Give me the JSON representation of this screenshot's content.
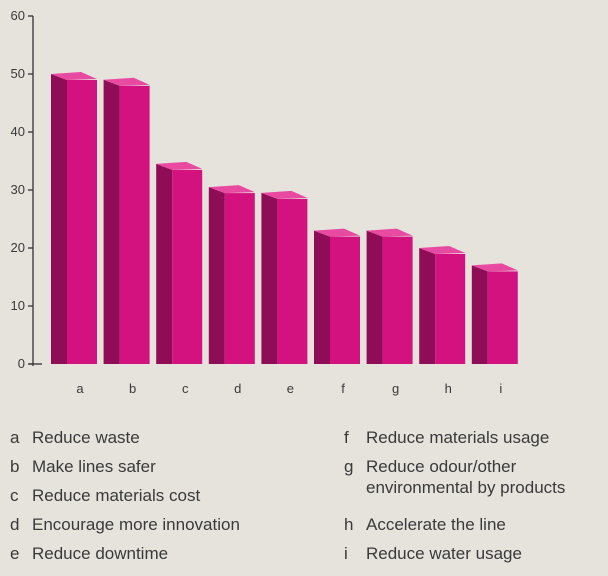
{
  "chart_data": {
    "type": "bar",
    "categories": [
      "a",
      "b",
      "c",
      "d",
      "e",
      "f",
      "g",
      "h",
      "i"
    ],
    "values": [
      50,
      49,
      34.5,
      30.5,
      29.5,
      23,
      23,
      20,
      17
    ],
    "ylim": [
      0,
      60
    ],
    "yticks": [
      0,
      10,
      20,
      30,
      40,
      50,
      60
    ],
    "title": "",
    "xlabel": "",
    "ylabel": "",
    "bar_color": "#d4127f",
    "bar_side_color": "#8f0c56",
    "bar_top_color": "#e94aa1",
    "grid": false,
    "style": "3d"
  },
  "legend": [
    {
      "key": "a",
      "text": "Reduce waste"
    },
    {
      "key": "b",
      "text": "Make lines safer"
    },
    {
      "key": "c",
      "text": "Reduce materials cost"
    },
    {
      "key": "d",
      "text": "Encourage more innovation"
    },
    {
      "key": "e",
      "text": "Reduce downtime"
    },
    {
      "key": "f",
      "text": "Reduce materials usage"
    },
    {
      "key": "g",
      "text": "Reduce odour/other\nenvironmental by products"
    },
    {
      "key": "h",
      "text": "Accelerate the line"
    },
    {
      "key": "i",
      "text": "Reduce water usage"
    }
  ]
}
